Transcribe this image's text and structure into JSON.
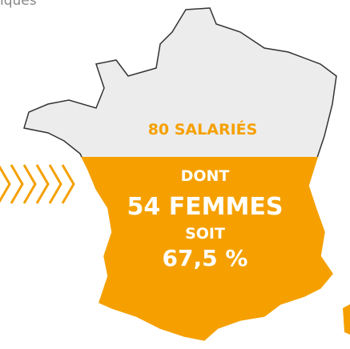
{
  "header_fragment": "iques",
  "labels": {
    "employees": "80 SALARIÉS",
    "dont": "DONT",
    "women": "54 FEMMES",
    "soit": "SOIT",
    "percent": "67,5 %"
  }
}
